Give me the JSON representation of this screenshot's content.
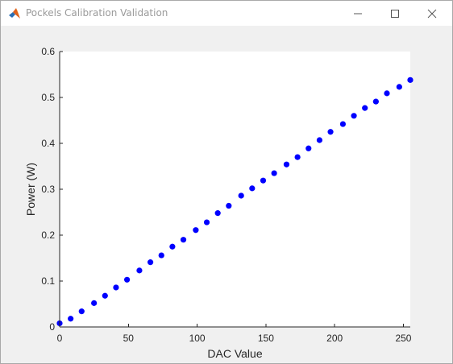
{
  "window": {
    "title": "Pockels Calibration Validation",
    "app_icon": "matlab-logo-icon",
    "controls": [
      "minimize-icon",
      "maximize-icon",
      "close-icon"
    ]
  },
  "chart_data": {
    "type": "scatter",
    "title": "",
    "xlabel": "DAC Value",
    "ylabel": "Power (W)",
    "xlim": [
      0,
      255
    ],
    "ylim": [
      0,
      0.6
    ],
    "xticks": [
      0,
      50,
      100,
      150,
      200,
      250
    ],
    "xtick_labels": [
      "0",
      "50",
      "100",
      "150",
      "200",
      "250"
    ],
    "yticks": [
      0,
      0.1,
      0.2,
      0.3,
      0.4,
      0.5,
      0.6
    ],
    "ytick_labels": [
      "0",
      "0.1",
      "0.2",
      "0.3",
      "0.4",
      "0.5",
      "0.6"
    ],
    "grid": false,
    "marker_color": "#0000ff",
    "series": [
      {
        "x": [
          0,
          8,
          16,
          25,
          33,
          41,
          49,
          58,
          66,
          74,
          82,
          90,
          99,
          107,
          115,
          123,
          132,
          140,
          148,
          156,
          165,
          173,
          181,
          189,
          197,
          206,
          214,
          222,
          230,
          238,
          247,
          255
        ],
        "y": [
          0.008,
          0.018,
          0.034,
          0.052,
          0.068,
          0.086,
          0.103,
          0.123,
          0.141,
          0.156,
          0.175,
          0.19,
          0.211,
          0.228,
          0.248,
          0.264,
          0.286,
          0.302,
          0.319,
          0.335,
          0.354,
          0.37,
          0.389,
          0.407,
          0.425,
          0.442,
          0.46,
          0.477,
          0.491,
          0.509,
          0.523,
          0.538
        ]
      }
    ]
  }
}
